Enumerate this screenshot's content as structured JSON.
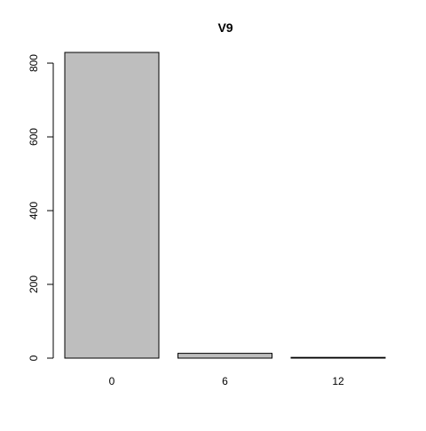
{
  "chart_data": {
    "type": "bar",
    "title": "V9",
    "xlabel": "",
    "ylabel": "",
    "categories": [
      "0",
      "6",
      "12"
    ],
    "values": [
      829,
      13,
      2
    ],
    "ylim": [
      0,
      829
    ],
    "yticks": [
      0,
      200,
      400,
      600,
      800
    ],
    "grid": false,
    "colors": {
      "bar_fill": "#bebebe",
      "bar_stroke": "#000000"
    }
  }
}
